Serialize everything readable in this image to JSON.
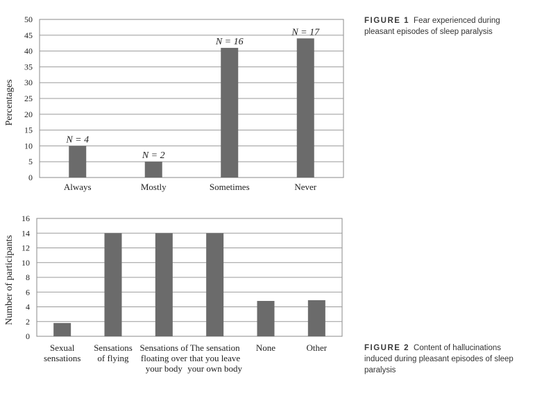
{
  "captions": [
    {
      "figure": "FIGURE 1",
      "text": "Fear experienced during pleasant episodes of sleep paralysis"
    },
    {
      "figure": "FIGURE 2",
      "text": "Content of hallucinations induced during pleasant episodes of sleep paralysis"
    }
  ],
  "chart_data": [
    {
      "type": "bar",
      "ylabel": "Percentages",
      "xlabel": "",
      "ylim": [
        0,
        50
      ],
      "yticks": [
        0,
        5,
        10,
        15,
        20,
        25,
        30,
        35,
        40,
        45,
        50
      ],
      "grid": true,
      "categories": [
        [
          "Always"
        ],
        [
          "Mostly"
        ],
        [
          "Sometimes"
        ],
        [
          "Never"
        ]
      ],
      "values": [
        10,
        5,
        41,
        44
      ],
      "annotations": [
        "N = 4",
        "N = 2",
        "N = 16",
        "N = 17"
      ],
      "bar_color": "#6b6b6b"
    },
    {
      "type": "bar",
      "ylabel": "Number of participants",
      "xlabel": "",
      "ylim": [
        0,
        16
      ],
      "yticks": [
        0,
        2,
        4,
        6,
        8,
        10,
        12,
        14,
        16
      ],
      "grid": true,
      "categories": [
        [
          "Sexual",
          "sensations"
        ],
        [
          "Sensations",
          "of flying"
        ],
        [
          "Sensations of",
          "floating over",
          "your body"
        ],
        [
          "The sensation",
          "that you leave",
          "your own body"
        ],
        [
          "None"
        ],
        [
          "Other"
        ]
      ],
      "values": [
        1.8,
        14,
        14,
        14,
        4.8,
        4.9
      ],
      "bar_color": "#6b6b6b"
    }
  ]
}
